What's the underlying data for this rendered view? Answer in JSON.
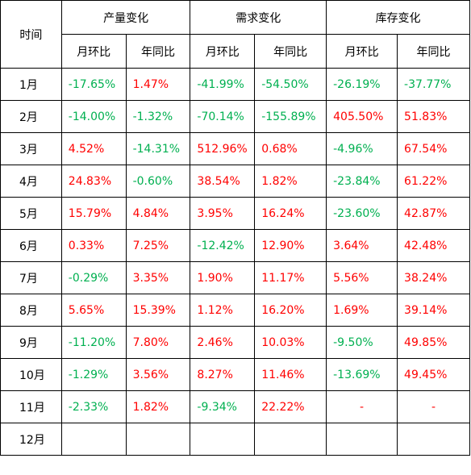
{
  "table": {
    "header_time": "时间",
    "groups": [
      "产量变化",
      "需求变化",
      "库存变化"
    ],
    "subheaders": [
      "月环比",
      "年同比",
      "月环比",
      "年同比",
      "月环比",
      "年同比"
    ],
    "colors": {
      "positive": "#ff0000",
      "negative": "#00b050",
      "border": "#000000"
    },
    "rows": [
      {
        "month": "1月",
        "cells": [
          "-17.65%",
          "1.47%",
          "-41.99%",
          "-54.50%",
          "-26.19%",
          "-37.77%"
        ]
      },
      {
        "month": "2月",
        "cells": [
          "-14.00%",
          "-1.32%",
          "-70.14%",
          "-155.89%",
          "405.50%",
          "51.83%"
        ]
      },
      {
        "month": "3月",
        "cells": [
          "4.52%",
          "-14.31%",
          "512.96%",
          "0.68%",
          "-4.96%",
          "67.54%"
        ]
      },
      {
        "month": "4月",
        "cells": [
          "24.83%",
          "-0.60%",
          "38.54%",
          "1.82%",
          "-23.84%",
          "61.22%"
        ]
      },
      {
        "month": "5月",
        "cells": [
          "15.79%",
          "4.84%",
          "3.95%",
          "16.24%",
          "-23.60%",
          "42.87%"
        ]
      },
      {
        "month": "6月",
        "cells": [
          "0.33%",
          "7.25%",
          "-12.42%",
          "12.90%",
          "3.64%",
          "42.48%"
        ]
      },
      {
        "month": "7月",
        "cells": [
          "-0.29%",
          "3.35%",
          "1.90%",
          "11.17%",
          "5.56%",
          "38.24%"
        ]
      },
      {
        "month": "8月",
        "cells": [
          "5.65%",
          "15.39%",
          "1.12%",
          "16.20%",
          "1.69%",
          "39.14%"
        ]
      },
      {
        "month": "9月",
        "cells": [
          "-11.20%",
          "7.80%",
          "2.46%",
          "10.03%",
          "-9.50%",
          "49.85%"
        ]
      },
      {
        "month": "10月",
        "cells": [
          "-1.29%",
          "3.56%",
          "8.27%",
          "11.46%",
          "-13.69%",
          "49.45%"
        ]
      },
      {
        "month": "11月",
        "cells": [
          "-2.33%",
          "1.82%",
          "-9.34%",
          "22.22%",
          "-",
          "-"
        ]
      },
      {
        "month": "12月",
        "cells": [
          "",
          "",
          "",
          "",
          "",
          ""
        ]
      }
    ]
  }
}
